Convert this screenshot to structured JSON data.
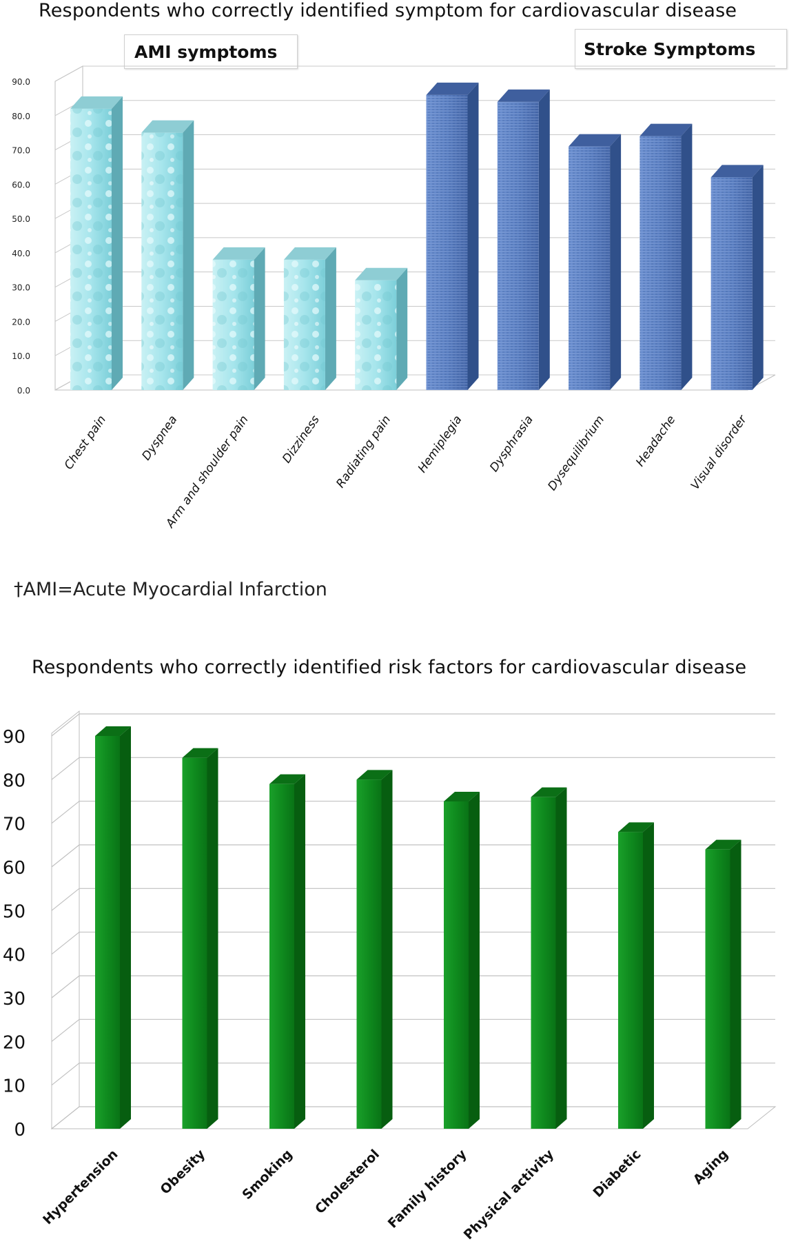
{
  "chart_data": [
    {
      "type": "bar",
      "title": "Respondents who correctly identified  symptom  for cardiovascular disease",
      "categories": [
        "Chest pain",
        "Dyspnea",
        "Arm and shoulder pain",
        "Dizziness",
        "Radiating pain",
        "Hemiplegia",
        "Dysphrasia",
        "Dysequilibrium",
        "Headache",
        "Visual disorder"
      ],
      "values": [
        82,
        75,
        38,
        38,
        32,
        86,
        84,
        71,
        74,
        62
      ],
      "groups": [
        {
          "name": "AMI  symptoms",
          "categories": [
            "Chest pain",
            "Dyspnea",
            "Arm and shoulder pain",
            "Dizziness",
            "Radiating pain"
          ],
          "color": "#8fd8df"
        },
        {
          "name": "Stroke Symptoms",
          "categories": [
            "Hemiplegia",
            "Dysphrasia",
            "Dysequilibrium",
            "Headache",
            "Visual disorder"
          ],
          "color": "#4e74b8"
        }
      ],
      "yticks": [
        "0.0",
        "10.0",
        "20.0",
        "30.0",
        "40.0",
        "50.0",
        "60.0",
        "70.0",
        "80.0",
        "90.0"
      ],
      "ylim": [
        0,
        90
      ],
      "grid": true,
      "footnote": "†AMI=Acute Myocardial Infarction"
    },
    {
      "type": "bar",
      "title": "Respondents who correctly identified  risk factors  for cardiovascular disease",
      "categories": [
        "Hypertension",
        "Obesity",
        "Smoking",
        "Cholesterol",
        "Family history",
        "Physical activity",
        "Diabetic",
        "Aging"
      ],
      "values": [
        90,
        85,
        79,
        80,
        75,
        76,
        68,
        64
      ],
      "color": "#0d8a1a",
      "yticks": [
        "0",
        "10",
        "20",
        "30",
        "40",
        "50",
        "60",
        "70",
        "80",
        "90"
      ],
      "ylim": [
        0,
        90
      ],
      "grid": true
    }
  ]
}
